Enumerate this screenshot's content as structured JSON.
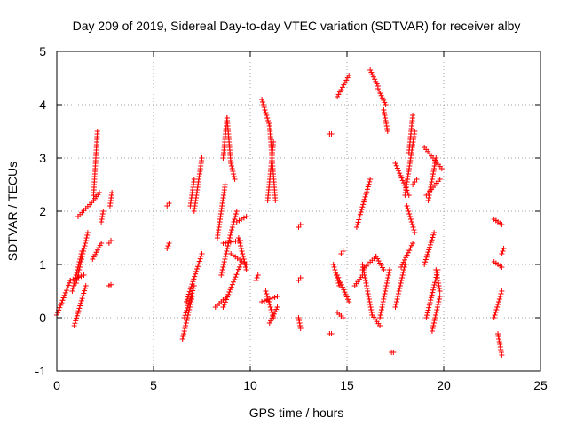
{
  "chart_data": {
    "type": "scatter",
    "title": "Day 209 of 2019, Sidereal Day-to-day VTEC variation (SDTVAR) for receiver alby",
    "xlabel": "GPS time / hours",
    "ylabel": "SDTVAR / TECUs",
    "xlim": [
      0,
      25
    ],
    "ylim": [
      -1,
      5
    ],
    "xticks": [
      0,
      5,
      10,
      15,
      20,
      25
    ],
    "yticks": [
      -1,
      0,
      1,
      2,
      3,
      4,
      5
    ],
    "grid": true,
    "marker": "+",
    "color": "#ff0000",
    "series": [
      {
        "name": "SDTVAR",
        "tracks": [
          {
            "x0": 0.0,
            "x1": 0.7,
            "y0": 0.05,
            "y1": 0.7
          },
          {
            "x0": 0.7,
            "x1": 1.4,
            "y0": 0.7,
            "y1": 0.8
          },
          {
            "x0": 0.8,
            "x1": 1.3,
            "y0": 0.5,
            "y1": 1.25
          },
          {
            "x0": 0.9,
            "x1": 1.5,
            "y0": -0.15,
            "y1": 0.6
          },
          {
            "x0": 1.0,
            "x1": 1.6,
            "y0": 0.65,
            "y1": 1.6
          },
          {
            "x0": 1.1,
            "x1": 1.9,
            "y0": 1.9,
            "y1": 2.2
          },
          {
            "x0": 1.9,
            "x1": 2.2,
            "y0": 2.2,
            "y1": 2.35
          },
          {
            "x0": 1.9,
            "x1": 2.1,
            "y0": 2.3,
            "y1": 3.5
          },
          {
            "x0": 1.85,
            "x1": 2.3,
            "y0": 1.1,
            "y1": 1.4
          },
          {
            "x0": 2.3,
            "x1": 2.4,
            "y0": 1.8,
            "y1": 2.0
          },
          {
            "x0": 2.75,
            "x1": 2.85,
            "y0": 2.1,
            "y1": 2.35
          },
          {
            "x0": 2.7,
            "x1": 2.8,
            "y0": 1.4,
            "y1": 1.45
          },
          {
            "x0": 2.7,
            "x1": 2.8,
            "y0": 0.6,
            "y1": 0.62
          },
          {
            "x0": 5.7,
            "x1": 5.8,
            "y0": 2.1,
            "y1": 2.15
          },
          {
            "x0": 5.7,
            "x1": 5.8,
            "y0": 1.3,
            "y1": 1.4
          },
          {
            "x0": 6.5,
            "x1": 7.0,
            "y0": -0.4,
            "y1": 0.4
          },
          {
            "x0": 6.6,
            "x1": 7.1,
            "y0": 0.0,
            "y1": 0.6
          },
          {
            "x0": 6.7,
            "x1": 7.5,
            "y0": 0.3,
            "y1": 1.2
          },
          {
            "x0": 6.9,
            "x1": 7.1,
            "y0": 2.1,
            "y1": 2.6
          },
          {
            "x0": 7.1,
            "x1": 7.5,
            "y0": 2.0,
            "y1": 3.0
          },
          {
            "x0": 8.2,
            "x1": 8.8,
            "y0": 0.2,
            "y1": 0.4
          },
          {
            "x0": 8.3,
            "x1": 8.7,
            "y0": 1.5,
            "y1": 2.5
          },
          {
            "x0": 8.6,
            "x1": 8.8,
            "y0": 3.0,
            "y1": 3.75
          },
          {
            "x0": 8.8,
            "x1": 9.0,
            "y0": 3.75,
            "y1": 2.9
          },
          {
            "x0": 9.0,
            "x1": 9.2,
            "y0": 2.9,
            "y1": 2.6
          },
          {
            "x0": 8.6,
            "x1": 9.5,
            "y0": 1.4,
            "y1": 1.45
          },
          {
            "x0": 8.6,
            "x1": 9.5,
            "y0": 0.2,
            "y1": 1.0
          },
          {
            "x0": 8.5,
            "x1": 9.0,
            "y0": 0.8,
            "y1": 1.6
          },
          {
            "x0": 9.0,
            "x1": 9.3,
            "y0": 1.6,
            "y1": 2.0
          },
          {
            "x0": 9.3,
            "x1": 9.8,
            "y0": 1.8,
            "y1": 1.9
          },
          {
            "x0": 9.0,
            "x1": 9.8,
            "y0": 1.2,
            "y1": 1.0
          },
          {
            "x0": 9.4,
            "x1": 9.8,
            "y0": 1.5,
            "y1": 0.9
          },
          {
            "x0": 10.3,
            "x1": 10.4,
            "y0": 0.7,
            "y1": 0.8
          },
          {
            "x0": 10.6,
            "x1": 11.0,
            "y0": 4.1,
            "y1": 3.6
          },
          {
            "x0": 11.0,
            "x1": 11.3,
            "y0": 3.6,
            "y1": 2.2
          },
          {
            "x0": 10.9,
            "x1": 11.2,
            "y0": 2.2,
            "y1": 3.3
          },
          {
            "x0": 10.6,
            "x1": 11.4,
            "y0": 0.3,
            "y1": 0.4
          },
          {
            "x0": 10.8,
            "x1": 11.2,
            "y0": 0.5,
            "y1": 0.0
          },
          {
            "x0": 11.0,
            "x1": 11.4,
            "y0": -0.1,
            "y1": 0.2
          },
          {
            "x0": 12.5,
            "x1": 12.6,
            "y0": 1.7,
            "y1": 1.75
          },
          {
            "x0": 12.5,
            "x1": 12.6,
            "y0": 0.7,
            "y1": 0.75
          },
          {
            "x0": 12.5,
            "x1": 12.6,
            "y0": 0.0,
            "y1": -0.2
          },
          {
            "x0": 14.1,
            "x1": 14.2,
            "y0": 3.45,
            "y1": 3.45
          },
          {
            "x0": 14.5,
            "x1": 15.1,
            "y0": 4.15,
            "y1": 4.55
          },
          {
            "x0": 14.3,
            "x1": 14.6,
            "y0": 1.0,
            "y1": 0.6
          },
          {
            "x0": 14.5,
            "x1": 15.1,
            "y0": 0.8,
            "y1": 0.3
          },
          {
            "x0": 14.5,
            "x1": 14.8,
            "y0": 0.1,
            "y1": 0.0
          },
          {
            "x0": 14.7,
            "x1": 14.8,
            "y0": 1.2,
            "y1": 1.25
          },
          {
            "x0": 14.1,
            "x1": 14.2,
            "y0": -0.3,
            "y1": -0.3
          },
          {
            "x0": 15.5,
            "x1": 16.2,
            "y0": 1.7,
            "y1": 2.6
          },
          {
            "x0": 15.4,
            "x1": 15.8,
            "y0": 0.6,
            "y1": 0.8
          },
          {
            "x0": 15.8,
            "x1": 16.5,
            "y0": 0.9,
            "y1": 1.15
          },
          {
            "x0": 16.5,
            "x1": 16.9,
            "y0": 1.15,
            "y1": 0.9
          },
          {
            "x0": 15.8,
            "x1": 16.3,
            "y0": 1.0,
            "y1": 0.05
          },
          {
            "x0": 16.3,
            "x1": 16.7,
            "y0": 0.05,
            "y1": -0.15
          },
          {
            "x0": 16.7,
            "x1": 17.2,
            "y0": 0.0,
            "y1": 0.9
          },
          {
            "x0": 16.2,
            "x1": 16.6,
            "y0": 4.65,
            "y1": 4.35
          },
          {
            "x0": 16.6,
            "x1": 17.0,
            "y0": 4.3,
            "y1": 4.0
          },
          {
            "x0": 16.9,
            "x1": 17.1,
            "y0": 3.9,
            "y1": 3.5
          },
          {
            "x0": 17.3,
            "x1": 17.4,
            "y0": -0.65,
            "y1": -0.65
          },
          {
            "x0": 17.5,
            "x1": 18.0,
            "y0": 0.2,
            "y1": 1.0
          },
          {
            "x0": 17.8,
            "x1": 18.4,
            "y0": 0.95,
            "y1": 1.4
          },
          {
            "x0": 17.5,
            "x1": 18.2,
            "y0": 2.9,
            "y1": 2.3
          },
          {
            "x0": 18.0,
            "x1": 18.5,
            "y0": 2.3,
            "y1": 3.5
          },
          {
            "x0": 18.2,
            "x1": 18.4,
            "y0": 3.1,
            "y1": 3.8
          },
          {
            "x0": 18.1,
            "x1": 18.5,
            "y0": 2.1,
            "y1": 1.6
          },
          {
            "x0": 18.4,
            "x1": 18.6,
            "y0": 2.5,
            "y1": 2.6
          },
          {
            "x0": 19.0,
            "x1": 19.9,
            "y0": 3.2,
            "y1": 2.8
          },
          {
            "x0": 19.1,
            "x1": 19.8,
            "y0": 2.3,
            "y1": 2.6
          },
          {
            "x0": 19.2,
            "x1": 19.6,
            "y0": 2.2,
            "y1": 3.0
          },
          {
            "x0": 19.0,
            "x1": 19.5,
            "y0": 1.0,
            "y1": 1.6
          },
          {
            "x0": 19.1,
            "x1": 19.7,
            "y0": 0.0,
            "y1": 0.9
          },
          {
            "x0": 19.4,
            "x1": 19.8,
            "y0": -0.25,
            "y1": 0.4
          },
          {
            "x0": 19.6,
            "x1": 19.8,
            "y0": 0.9,
            "y1": 0.5
          },
          {
            "x0": 22.6,
            "x1": 23.0,
            "y0": 1.85,
            "y1": 1.75
          },
          {
            "x0": 22.6,
            "x1": 23.0,
            "y0": 1.05,
            "y1": 0.95
          },
          {
            "x0": 22.6,
            "x1": 23.0,
            "y0": 0.0,
            "y1": 0.5
          },
          {
            "x0": 22.8,
            "x1": 23.0,
            "y0": -0.3,
            "y1": -0.7
          },
          {
            "x0": 23.0,
            "x1": 23.1,
            "y0": 1.2,
            "y1": 1.3
          }
        ]
      }
    ]
  }
}
